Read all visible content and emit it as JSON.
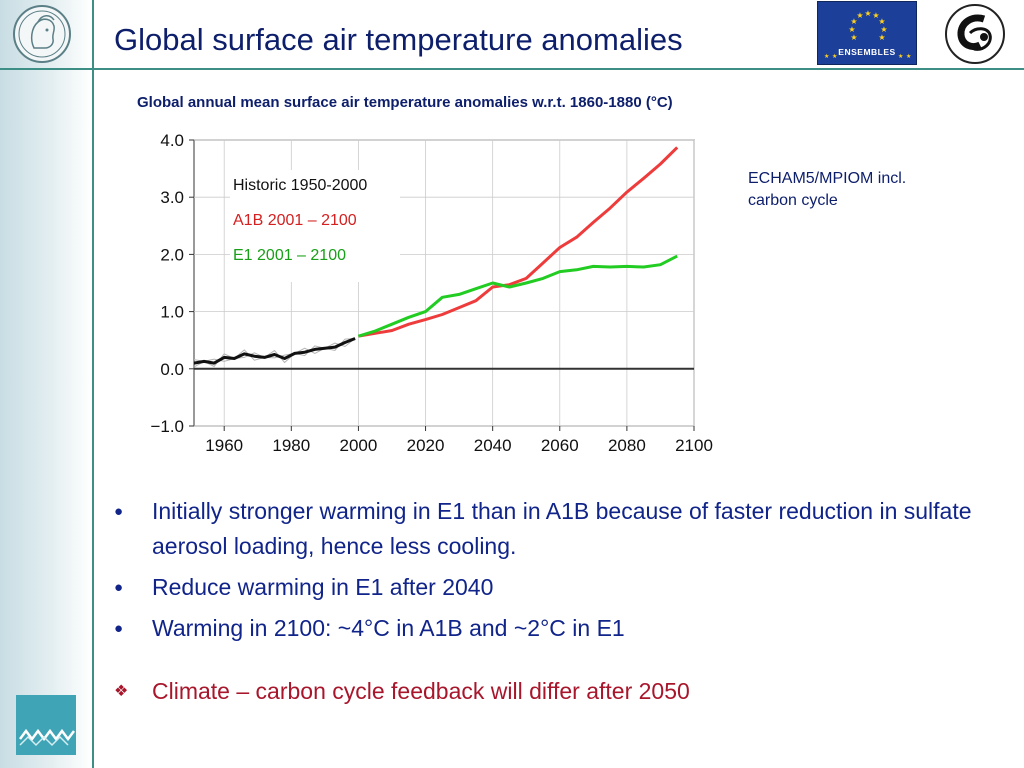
{
  "slide": {
    "title": "Global surface air temperature anomalies",
    "logos": {
      "ensembles_text": "ENSEMBLES"
    },
    "side_note": "ECHAM5/MPIOM incl.\ncarbon cycle",
    "bullets": [
      "Initially stronger warming in E1 than in A1B because of faster reduction in sulfate aerosol loading, hence less cooling.",
      "Reduce warming in E1 after 2040",
      "Warming in 2100: ~4°C in A1B and ~2°C in E1"
    ],
    "emphasis": "Climate – carbon cycle feedback will differ after 2050"
  },
  "colors": {
    "title": "#0d1e6b",
    "bullet_text": "#10248a",
    "emphasis": "#a8162b",
    "accent_rule": "#3d8e85",
    "series_historic": "#111111",
    "series_a1b": "#ee3c3c",
    "series_e1": "#22cc22",
    "ensemble_spread": "#b4b4b4"
  },
  "chart_data": {
    "type": "line",
    "title": "Global annual mean surface air temperature anomalies w.r.t. 1860-1880 (°C)",
    "xlim": [
      1951,
      2100
    ],
    "ylim": [
      -1.0,
      4.0
    ],
    "x_ticks": [
      1960,
      1980,
      2000,
      2020,
      2040,
      2060,
      2080,
      2100
    ],
    "y_ticks": [
      4.0,
      3.0,
      2.0,
      1.0,
      0.0,
      -1.0
    ],
    "y_tick_labels": [
      "4.0",
      "3.0",
      "2.0",
      "1.0",
      "0.0",
      "−1.0"
    ],
    "grid": true,
    "zero_line": true,
    "legend_position": "top-left",
    "series": [
      {
        "name": "Historic 1950-2000",
        "color": "#111111",
        "x": [
          1951,
          1954,
          1957,
          1960,
          1963,
          1966,
          1969,
          1972,
          1975,
          1978,
          1981,
          1984,
          1987,
          1990,
          1993,
          1996,
          1999
        ],
        "y": [
          0.1,
          0.13,
          0.1,
          0.2,
          0.18,
          0.26,
          0.22,
          0.2,
          0.25,
          0.18,
          0.27,
          0.29,
          0.34,
          0.36,
          0.38,
          0.46,
          0.53
        ]
      },
      {
        "name": "A1B 2001 – 2100",
        "color": "#ee3c3c",
        "x": [
          2000,
          2005,
          2010,
          2015,
          2020,
          2025,
          2030,
          2035,
          2040,
          2045,
          2050,
          2055,
          2060,
          2065,
          2070,
          2075,
          2080,
          2085,
          2090,
          2095
        ],
        "y": [
          0.57,
          0.62,
          0.67,
          0.78,
          0.86,
          0.95,
          1.07,
          1.19,
          1.43,
          1.47,
          1.58,
          1.85,
          2.12,
          2.3,
          2.56,
          2.81,
          3.09,
          3.33,
          3.58,
          3.87
        ]
      },
      {
        "name": "E1   2001 – 2100",
        "color": "#22cc22",
        "x": [
          2000,
          2005,
          2010,
          2015,
          2020,
          2025,
          2030,
          2035,
          2040,
          2045,
          2050,
          2055,
          2060,
          2065,
          2070,
          2075,
          2080,
          2085,
          2090,
          2095
        ],
        "y": [
          0.57,
          0.66,
          0.78,
          0.9,
          1.0,
          1.25,
          1.3,
          1.4,
          1.5,
          1.43,
          1.5,
          1.58,
          1.7,
          1.73,
          1.79,
          1.78,
          1.79,
          1.78,
          1.82,
          1.97
        ]
      }
    ]
  }
}
